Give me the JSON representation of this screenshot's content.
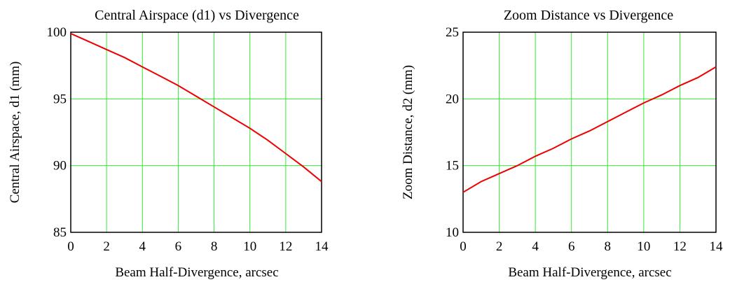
{
  "chart_data": [
    {
      "type": "line",
      "title": "Central Airspace (d1) vs Divergence",
      "xlabel": "Beam Half-Divergence, arcsec",
      "ylabel": "Central Airspace, d1 (mm)",
      "xlim": [
        0,
        14
      ],
      "ylim": [
        85,
        100
      ],
      "xticks": [
        0,
        2,
        4,
        6,
        8,
        10,
        12,
        14
      ],
      "yticks": [
        85,
        90,
        95,
        100
      ],
      "grid": true,
      "series": [
        {
          "x": [
            0,
            1,
            2,
            3,
            4,
            5,
            6,
            7,
            8,
            9,
            10,
            11,
            12,
            13,
            14
          ],
          "y": [
            99.9,
            99.3,
            98.7,
            98.1,
            97.4,
            96.7,
            96.0,
            95.2,
            94.4,
            93.6,
            92.8,
            91.9,
            90.9,
            89.9,
            88.8
          ]
        }
      ],
      "colors": {
        "line": "#ee0000",
        "grid": "#33ee33"
      }
    },
    {
      "type": "line",
      "title": "Zoom Distance vs Divergence",
      "xlabel": "Beam Half-Divergence, arcsec",
      "ylabel": "Zoom Distance, d2 (mm)",
      "xlim": [
        0,
        14
      ],
      "ylim": [
        10,
        25
      ],
      "xticks": [
        0,
        2,
        4,
        6,
        8,
        10,
        12,
        14
      ],
      "yticks": [
        10,
        15,
        20,
        25
      ],
      "grid": true,
      "series": [
        {
          "x": [
            0,
            1,
            2,
            3,
            4,
            5,
            6,
            7,
            8,
            9,
            10,
            11,
            12,
            13,
            14
          ],
          "y": [
            13.0,
            13.8,
            14.4,
            15.0,
            15.7,
            16.3,
            17.0,
            17.6,
            18.3,
            19.0,
            19.7,
            20.3,
            21.0,
            21.6,
            22.4
          ]
        }
      ],
      "colors": {
        "line": "#ee0000",
        "grid": "#33ee33"
      }
    }
  ]
}
